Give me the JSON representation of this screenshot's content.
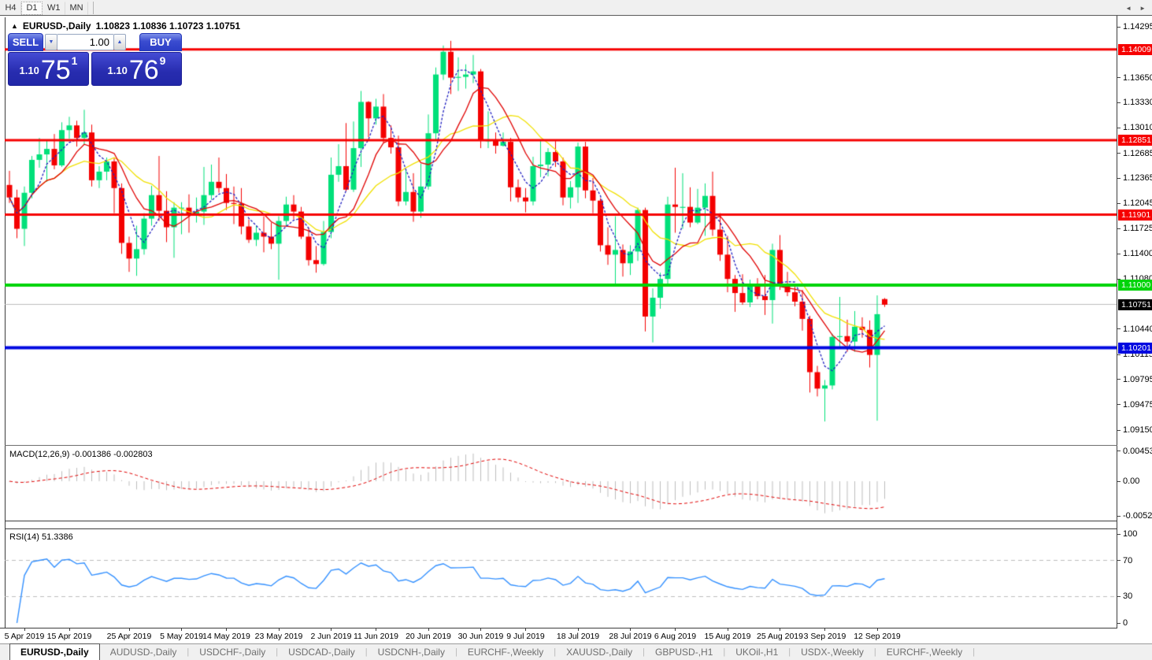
{
  "toolbar": {
    "timeframes": [
      {
        "label": "H4",
        "active": false
      },
      {
        "label": "D1",
        "active": true
      },
      {
        "label": "W1",
        "active": false
      },
      {
        "label": "MN",
        "active": false
      }
    ]
  },
  "header": {
    "collapse_icon": "▲",
    "symbol_title": "EURUSD-,Daily",
    "ohlc_text": "1.10823 1.10836 1.10723 1.10751"
  },
  "trade_panel": {
    "sell_label": "SELL",
    "buy_label": "BUY",
    "volume": "1.00",
    "spinner_down_icon": "▼",
    "spinner_up_icon": "▲",
    "sell_price": {
      "small": "1.10",
      "big": "75",
      "sup": "1"
    },
    "buy_price": {
      "small": "1.10",
      "big": "76",
      "sup": "9"
    }
  },
  "indicator_labels": {
    "macd": {
      "name": "MACD(12,26,9)",
      "macd_value": "-0.001386",
      "signal_value": "-0.002803"
    },
    "rsi": {
      "name": "RSI(14)",
      "value": "51.3386"
    }
  },
  "price_axis": {
    "ticks": [
      "1.14295",
      "1.13650",
      "1.13330",
      "1.13010",
      "1.12685",
      "1.12365",
      "1.12045",
      "1.11725",
      "1.11400",
      "1.11080",
      "1.10440",
      "1.10115",
      "1.09795",
      "1.09475",
      "1.09150"
    ],
    "badges": [
      {
        "text": "1.14009",
        "value": 1.14009,
        "color": "#f60000"
      },
      {
        "text": "1.12851",
        "value": 1.12851,
        "color": "#f60000"
      },
      {
        "text": "1.11901",
        "value": 1.11901,
        "color": "#f60000"
      },
      {
        "text": "1.11000",
        "value": 1.11,
        "color": "#00d40a"
      },
      {
        "text": "1.10751",
        "value": 1.10751,
        "color": "#000000"
      },
      {
        "text": "1.10201",
        "value": 1.10201,
        "color": "#0008e0"
      }
    ]
  },
  "macd_axis": [
    {
      "text": "0.004536",
      "value": 0.004536
    },
    {
      "text": "0.00",
      "value": 0
    },
    {
      "text": "-0.005205",
      "value": -0.005205
    }
  ],
  "rsi_axis": [
    {
      "text": "100",
      "value": 100
    },
    {
      "text": "70",
      "value": 70
    },
    {
      "text": "30",
      "value": 30
    },
    {
      "text": "0",
      "value": 0
    }
  ],
  "date_axis": [
    {
      "label": "5 Apr 2019",
      "index": 2
    },
    {
      "label": "15 Apr 2019",
      "index": 8
    },
    {
      "label": "25 Apr 2019",
      "index": 16
    },
    {
      "label": "5 May 2019",
      "index": 23
    },
    {
      "label": "14 May 2019",
      "index": 29
    },
    {
      "label": "23 May 2019",
      "index": 36
    },
    {
      "label": "2 Jun 2019",
      "index": 43
    },
    {
      "label": "11 Jun 2019",
      "index": 49
    },
    {
      "label": "20 Jun 2019",
      "index": 56
    },
    {
      "label": "30 Jun 2019",
      "index": 63
    },
    {
      "label": "9 Jul 2019",
      "index": 69
    },
    {
      "label": "18 Jul 2019",
      "index": 76
    },
    {
      "label": "28 Jul 2019",
      "index": 83
    },
    {
      "label": "6 Aug 2019",
      "index": 89
    },
    {
      "label": "15 Aug 2019",
      "index": 96
    },
    {
      "label": "25 Aug 2019",
      "index": 103
    },
    {
      "label": "3 Sep 2019",
      "index": 109
    },
    {
      "label": "12 Sep 2019",
      "index": 116
    }
  ],
  "tabs": {
    "items": [
      "EURUSD-,Daily",
      "AUDUSD-,Daily",
      "USDCHF-,Daily",
      "USDCAD-,Daily",
      "USDCNH-,Daily",
      "EURCHF-,Weekly",
      "XAUUSD-,Daily",
      "GBPUSD-,H1",
      "UKOil-,H1",
      "USDX-,Weekly",
      "EURCHF-,Weekly"
    ],
    "active_index": 0,
    "separator": "|",
    "scroll_left_icon": "◄",
    "scroll_right_icon": "►"
  },
  "chart_data": {
    "type": "candlestick",
    "symbol": "EURUSD-",
    "timeframe": "Daily",
    "last_ohlc": {
      "open": 1.10823,
      "high": 1.10836,
      "low": 1.10723,
      "close": 1.10751
    },
    "price_range": [
      1.0896,
      1.1442
    ],
    "colors": {
      "bull": "#00e07a",
      "bear": "#f40000",
      "ma_fast": "#2020c0",
      "ma_mid": "#e00000",
      "ma_slow": "#f0e000",
      "current_price_line": "#bdbdbd",
      "macd_histogram": "#bdbdbd",
      "macd_signal": "#e00000",
      "rsi_line": "#3390ff",
      "rsi_levels": "#bdbdbd"
    },
    "moving_averages": [
      {
        "period": 13,
        "color_key": "ma_slow"
      },
      {
        "period": 8,
        "color_key": "ma_mid"
      },
      {
        "period": 4,
        "color_key": "ma_fast",
        "dashed": true
      }
    ],
    "hlines": [
      {
        "price": 1.14009,
        "color": "#f60000",
        "width": 3
      },
      {
        "price": 1.12851,
        "color": "#f60000",
        "width": 3
      },
      {
        "price": 1.11901,
        "color": "#f60000",
        "width": 3
      },
      {
        "price": 1.11,
        "color": "#00d40a",
        "width": 4
      },
      {
        "price": 1.10201,
        "color": "#0008e0",
        "width": 4
      }
    ],
    "current_price": 1.10751,
    "macd": {
      "fast": 12,
      "slow": 26,
      "signal": 9,
      "range_top": 0.0052
    },
    "rsi": {
      "period": 14,
      "levels": [
        70,
        30
      ]
    },
    "candles": [
      [
        1.1228,
        1.1246,
        1.1205,
        1.1212
      ],
      [
        1.1212,
        1.1222,
        1.116,
        1.1172
      ],
      [
        1.1172,
        1.1226,
        1.115,
        1.1218
      ],
      [
        1.1218,
        1.1265,
        1.1211,
        1.126
      ],
      [
        1.126,
        1.1288,
        1.125,
        1.1267
      ],
      [
        1.1267,
        1.1285,
        1.1232,
        1.1274
      ],
      [
        1.1274,
        1.1293,
        1.1248,
        1.1253
      ],
      [
        1.1253,
        1.1308,
        1.1251,
        1.1298
      ],
      [
        1.1298,
        1.1315,
        1.1287,
        1.1304
      ],
      [
        1.1304,
        1.131,
        1.1277,
        1.1288
      ],
      [
        1.1288,
        1.1324,
        1.128,
        1.1295
      ],
      [
        1.1295,
        1.1305,
        1.1226,
        1.1234
      ],
      [
        1.1234,
        1.1252,
        1.1224,
        1.1245
      ],
      [
        1.1245,
        1.1263,
        1.1234,
        1.1258
      ],
      [
        1.1258,
        1.1262,
        1.1192,
        1.1224
      ],
      [
        1.1224,
        1.123,
        1.114,
        1.1154
      ],
      [
        1.1154,
        1.1162,
        1.1117,
        1.1134
      ],
      [
        1.1134,
        1.1176,
        1.1112,
        1.1146
      ],
      [
        1.1146,
        1.1192,
        1.1139,
        1.1185
      ],
      [
        1.1185,
        1.1227,
        1.1176,
        1.1215
      ],
      [
        1.1215,
        1.1265,
        1.1182,
        1.1195
      ],
      [
        1.1195,
        1.122,
        1.1155,
        1.1174
      ],
      [
        1.1174,
        1.1206,
        1.1135,
        1.1199
      ],
      [
        1.1199,
        1.1206,
        1.1165,
        1.1199
      ],
      [
        1.1199,
        1.1216,
        1.1167,
        1.1191
      ],
      [
        1.1191,
        1.1212,
        1.118,
        1.1194
      ],
      [
        1.1194,
        1.1251,
        1.1177,
        1.1215
      ],
      [
        1.1215,
        1.1254,
        1.1209,
        1.1232
      ],
      [
        1.1232,
        1.1263,
        1.1218,
        1.1224
      ],
      [
        1.1224,
        1.1242,
        1.1196,
        1.1205
      ],
      [
        1.1205,
        1.1226,
        1.1178,
        1.1204
      ],
      [
        1.1204,
        1.1224,
        1.1165,
        1.1175
      ],
      [
        1.1175,
        1.1184,
        1.1154,
        1.1158
      ],
      [
        1.1158,
        1.1176,
        1.115,
        1.1167
      ],
      [
        1.1167,
        1.1188,
        1.1142,
        1.1162
      ],
      [
        1.1162,
        1.118,
        1.1146,
        1.1153
      ],
      [
        1.1153,
        1.1188,
        1.1107,
        1.1182
      ],
      [
        1.1182,
        1.1213,
        1.1175,
        1.1203
      ],
      [
        1.1203,
        1.1215,
        1.1184,
        1.1194
      ],
      [
        1.1194,
        1.12,
        1.1159,
        1.1162
      ],
      [
        1.1162,
        1.1173,
        1.1125,
        1.1132
      ],
      [
        1.1132,
        1.115,
        1.1116,
        1.1127
      ],
      [
        1.1127,
        1.1182,
        1.1125,
        1.1168
      ],
      [
        1.1168,
        1.1263,
        1.116,
        1.1241
      ],
      [
        1.1241,
        1.128,
        1.1232,
        1.1252
      ],
      [
        1.1252,
        1.1307,
        1.122,
        1.1222
      ],
      [
        1.1222,
        1.1309,
        1.1219,
        1.1275
      ],
      [
        1.1275,
        1.1348,
        1.1251,
        1.1334
      ],
      [
        1.1334,
        1.1335,
        1.1289,
        1.1313
      ],
      [
        1.1313,
        1.1338,
        1.1305,
        1.1328
      ],
      [
        1.1328,
        1.1344,
        1.1282,
        1.1288
      ],
      [
        1.1288,
        1.1304,
        1.1268,
        1.1276
      ],
      [
        1.1276,
        1.1291,
        1.1201,
        1.1207
      ],
      [
        1.1207,
        1.1248,
        1.1202,
        1.1219
      ],
      [
        1.1219,
        1.1243,
        1.1181,
        1.1194
      ],
      [
        1.1194,
        1.1255,
        1.1186,
        1.1226
      ],
      [
        1.1226,
        1.1318,
        1.1222,
        1.1294
      ],
      [
        1.1294,
        1.1378,
        1.1286,
        1.1369
      ],
      [
        1.1369,
        1.1406,
        1.1362,
        1.1398
      ],
      [
        1.1398,
        1.1412,
        1.1344,
        1.1365
      ],
      [
        1.1365,
        1.1391,
        1.1348,
        1.1366
      ],
      [
        1.1366,
        1.1382,
        1.1351,
        1.1369
      ],
      [
        1.1369,
        1.1394,
        1.1358,
        1.1373
      ],
      [
        1.1373,
        1.1376,
        1.1275,
        1.1285
      ],
      [
        1.1285,
        1.1322,
        1.1275,
        1.1285
      ],
      [
        1.1285,
        1.1295,
        1.1268,
        1.1278
      ],
      [
        1.1278,
        1.1295,
        1.1277,
        1.1283
      ],
      [
        1.1283,
        1.1288,
        1.1207,
        1.1225
      ],
      [
        1.1225,
        1.1235,
        1.1206,
        1.1212
      ],
      [
        1.1212,
        1.1224,
        1.1193,
        1.1207
      ],
      [
        1.1207,
        1.1264,
        1.1202,
        1.1252
      ],
      [
        1.1252,
        1.1286,
        1.1238,
        1.1254
      ],
      [
        1.1254,
        1.1275,
        1.1239,
        1.127
      ],
      [
        1.127,
        1.1284,
        1.1251,
        1.1258
      ],
      [
        1.1258,
        1.1263,
        1.1202,
        1.1212
      ],
      [
        1.1212,
        1.1233,
        1.1198,
        1.1225
      ],
      [
        1.1225,
        1.1282,
        1.1205,
        1.1277
      ],
      [
        1.1277,
        1.1283,
        1.1211,
        1.1221
      ],
      [
        1.1221,
        1.1237,
        1.1192,
        1.1208
      ],
      [
        1.1208,
        1.1211,
        1.1143,
        1.1151
      ],
      [
        1.1151,
        1.1174,
        1.1126,
        1.1139
      ],
      [
        1.1139,
        1.1188,
        1.1102,
        1.1145
      ],
      [
        1.1145,
        1.1152,
        1.1111,
        1.1128
      ],
      [
        1.1128,
        1.1151,
        1.1113,
        1.1143
      ],
      [
        1.1143,
        1.1199,
        1.1131,
        1.1196
      ],
      [
        1.1196,
        1.1199,
        1.1041,
        1.106
      ],
      [
        1.106,
        1.1096,
        1.1027,
        1.1084
      ],
      [
        1.1084,
        1.1116,
        1.107,
        1.1108
      ],
      [
        1.1108,
        1.1213,
        1.1101,
        1.1203
      ],
      [
        1.1203,
        1.125,
        1.1167,
        1.12
      ],
      [
        1.12,
        1.1243,
        1.1172,
        1.12
      ],
      [
        1.12,
        1.1225,
        1.1174,
        1.118
      ],
      [
        1.118,
        1.1223,
        1.1178,
        1.1199
      ],
      [
        1.1199,
        1.123,
        1.1163,
        1.1214
      ],
      [
        1.1214,
        1.1245,
        1.1163,
        1.1171
      ],
      [
        1.1171,
        1.1192,
        1.1131,
        1.1139
      ],
      [
        1.1139,
        1.1163,
        1.1091,
        1.1108
      ],
      [
        1.1108,
        1.1113,
        1.1066,
        1.109
      ],
      [
        1.109,
        1.1114,
        1.1075,
        1.1078
      ],
      [
        1.1078,
        1.1107,
        1.1072,
        1.1099
      ],
      [
        1.1099,
        1.1109,
        1.1082,
        1.1086
      ],
      [
        1.1086,
        1.1113,
        1.1062,
        1.1081
      ],
      [
        1.1081,
        1.1153,
        1.1051,
        1.1145
      ],
      [
        1.1145,
        1.1164,
        1.1094,
        1.1101
      ],
      [
        1.1101,
        1.1117,
        1.1086,
        1.1091
      ],
      [
        1.1091,
        1.1098,
        1.1073,
        1.1079
      ],
      [
        1.1079,
        1.1094,
        1.1042,
        1.1057
      ],
      [
        1.1057,
        1.1061,
        1.0963,
        1.0989
      ],
      [
        1.0989,
        1.0997,
        1.0958,
        1.0968
      ],
      [
        1.0968,
        1.0979,
        1.0926,
        1.0972
      ],
      [
        1.0972,
        1.1038,
        1.0967,
        1.1034
      ],
      [
        1.1034,
        1.1085,
        1.1022,
        1.1035
      ],
      [
        1.1035,
        1.1056,
        1.1015,
        1.1028
      ],
      [
        1.1028,
        1.1067,
        1.1015,
        1.1047
      ],
      [
        1.1047,
        1.1059,
        1.1033,
        1.1043
      ],
      [
        1.1043,
        1.1055,
        1.0995,
        1.1011
      ],
      [
        1.1011,
        1.1087,
        1.0927,
        1.1063
      ],
      [
        1.10823,
        1.10836,
        1.10723,
        1.10751
      ]
    ]
  }
}
